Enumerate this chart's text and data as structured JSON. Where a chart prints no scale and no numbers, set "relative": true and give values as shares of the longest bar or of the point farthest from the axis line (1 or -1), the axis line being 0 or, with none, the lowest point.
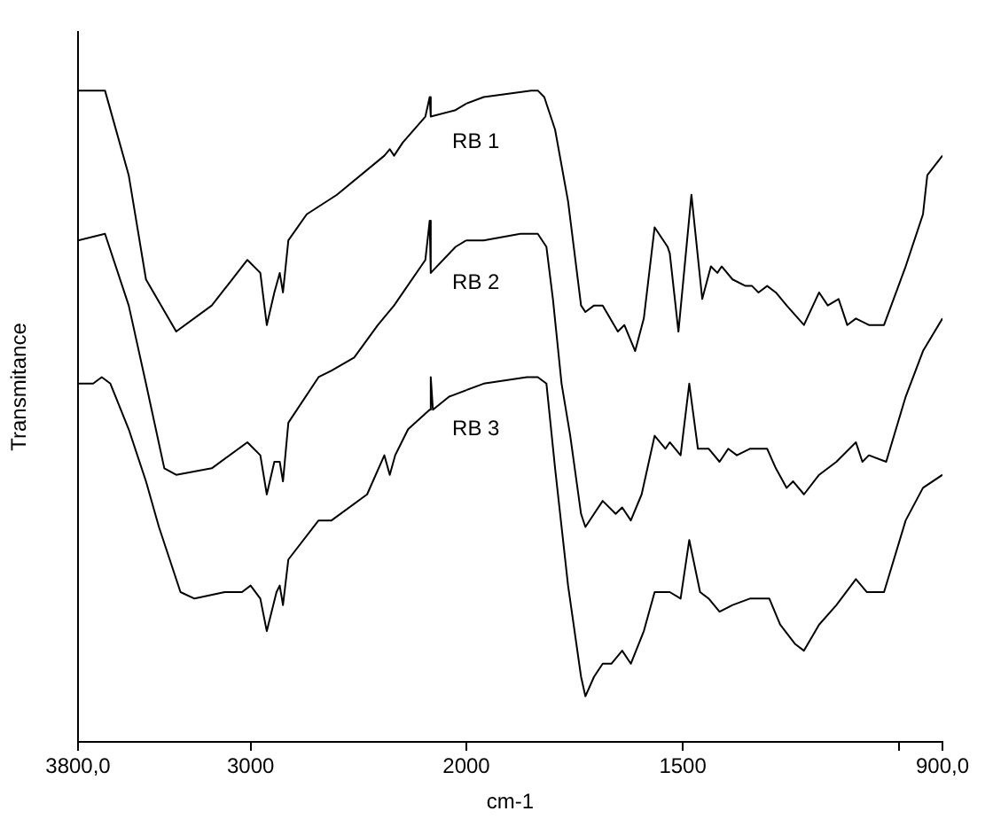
{
  "chart_data": [
    {
      "type": "line",
      "ylabel": "Transmitance",
      "relative": true,
      "legend": false,
      "grid": false,
      "xlim": [
        3800,
        2000
      ],
      "xticks": [
        {
          "value": 3800,
          "label": "3800,0"
        },
        3000,
        {
          "value": 2000,
          "label": null
        }
      ],
      "series": [
        {
          "color": "#000000",
          "x": [
            3800,
            3675,
            3565,
            3485,
            3345,
            3180,
            3015,
            2955,
            2925,
            2890,
            2865,
            2850,
            2825,
            2740,
            2600,
            2380,
            2355,
            2335,
            2295,
            2190,
            2170,
            2165,
            2050,
            2000
          ],
          "values": [
            1.0,
            1.0,
            0.87,
            0.71,
            0.63,
            0.67,
            0.74,
            0.72,
            0.64,
            0.69,
            0.72,
            0.69,
            0.77,
            0.81,
            0.84,
            0.9,
            0.91,
            0.9,
            0.92,
            0.96,
            0.99,
            0.96,
            0.97,
            0.98
          ]
        },
        {
          "color": "#000000",
          "x": [
            3800,
            3675,
            3565,
            3485,
            3400,
            3345,
            3180,
            3015,
            2955,
            2925,
            2890,
            2865,
            2850,
            2825,
            2685,
            2625,
            2520,
            2410,
            2335,
            2190,
            2170,
            2165,
            2050,
            2000
          ],
          "values": [
            0.77,
            0.78,
            0.67,
            0.55,
            0.42,
            0.41,
            0.42,
            0.46,
            0.44,
            0.38,
            0.43,
            0.43,
            0.4,
            0.49,
            0.56,
            0.57,
            0.59,
            0.64,
            0.67,
            0.74,
            0.8,
            0.72,
            0.76,
            0.77
          ]
        },
        {
          "color": "#000000",
          "x": [
            3800,
            3730,
            3690,
            3650,
            3565,
            3485,
            3425,
            3325,
            3260,
            3120,
            3040,
            3000,
            2955,
            2925,
            2880,
            2865,
            2850,
            2825,
            2685,
            2625,
            2460,
            2380,
            2355,
            2330,
            2270,
            2170,
            2165,
            2155,
            2080,
            2000
          ],
          "values": [
            0.55,
            0.55,
            0.56,
            0.55,
            0.48,
            0.4,
            0.33,
            0.23,
            0.22,
            0.23,
            0.23,
            0.24,
            0.22,
            0.17,
            0.23,
            0.24,
            0.21,
            0.28,
            0.34,
            0.34,
            0.38,
            0.44,
            0.41,
            0.44,
            0.48,
            0.51,
            0.56,
            0.51,
            0.53,
            0.54
          ]
        }
      ]
    },
    {
      "type": "line",
      "xlabel": "cm-1",
      "relative": true,
      "legend": false,
      "grid": false,
      "xlim": [
        2000,
        900
      ],
      "xticks": [
        2000,
        1500,
        {
          "value": 1000,
          "label": null
        },
        {
          "value": 900,
          "label": "900,0"
        }
      ],
      "series": [
        {
          "name": "RB 1",
          "color": "#000000",
          "x": [
            2000,
            1960,
            1850,
            1835,
            1820,
            1795,
            1765,
            1735,
            1725,
            1705,
            1685,
            1650,
            1635,
            1610,
            1590,
            1565,
            1535,
            1530,
            1510,
            1480,
            1455,
            1435,
            1420,
            1410,
            1385,
            1355,
            1340,
            1325,
            1305,
            1285,
            1260,
            1220,
            1185,
            1165,
            1140,
            1120,
            1100,
            1070,
            1035,
            985,
            945,
            935,
            900
          ],
          "values": [
            0.98,
            0.99,
            1.0,
            1.0,
            0.99,
            0.94,
            0.83,
            0.67,
            0.66,
            0.67,
            0.67,
            0.63,
            0.64,
            0.6,
            0.65,
            0.79,
            0.76,
            0.75,
            0.63,
            0.84,
            0.68,
            0.73,
            0.72,
            0.73,
            0.71,
            0.7,
            0.7,
            0.69,
            0.7,
            0.69,
            0.67,
            0.64,
            0.69,
            0.67,
            0.68,
            0.64,
            0.65,
            0.64,
            0.64,
            0.73,
            0.81,
            0.87,
            0.9
          ]
        },
        {
          "name": "RB 2",
          "color": "#000000",
          "x": [
            2000,
            1960,
            1875,
            1835,
            1815,
            1800,
            1780,
            1760,
            1735,
            1725,
            1705,
            1685,
            1655,
            1640,
            1620,
            1595,
            1565,
            1540,
            1530,
            1505,
            1485,
            1465,
            1440,
            1415,
            1395,
            1375,
            1345,
            1305,
            1285,
            1260,
            1245,
            1220,
            1185,
            1145,
            1100,
            1085,
            1070,
            1030,
            985,
            945,
            900
          ],
          "values": [
            0.77,
            0.77,
            0.78,
            0.78,
            0.76,
            0.68,
            0.55,
            0.47,
            0.35,
            0.33,
            0.35,
            0.37,
            0.35,
            0.36,
            0.34,
            0.38,
            0.47,
            0.45,
            0.46,
            0.44,
            0.55,
            0.45,
            0.45,
            0.43,
            0.45,
            0.44,
            0.45,
            0.45,
            0.42,
            0.39,
            0.4,
            0.38,
            0.41,
            0.43,
            0.46,
            0.43,
            0.44,
            0.43,
            0.53,
            0.6,
            0.65
          ]
        },
        {
          "name": "RB 3",
          "color": "#000000",
          "x": [
            2000,
            1960,
            1860,
            1835,
            1815,
            1795,
            1765,
            1735,
            1725,
            1705,
            1685,
            1665,
            1640,
            1620,
            1590,
            1565,
            1540,
            1530,
            1505,
            1485,
            1460,
            1440,
            1415,
            1385,
            1345,
            1300,
            1275,
            1240,
            1220,
            1185,
            1145,
            1100,
            1075,
            1035,
            985,
            945,
            900
          ],
          "values": [
            0.54,
            0.55,
            0.56,
            0.56,
            0.55,
            0.42,
            0.24,
            0.1,
            0.07,
            0.1,
            0.12,
            0.12,
            0.14,
            0.12,
            0.17,
            0.23,
            0.23,
            0.23,
            0.22,
            0.31,
            0.23,
            0.22,
            0.2,
            0.21,
            0.22,
            0.22,
            0.18,
            0.15,
            0.14,
            0.18,
            0.21,
            0.25,
            0.23,
            0.23,
            0.34,
            0.39,
            0.41
          ]
        }
      ]
    }
  ]
}
